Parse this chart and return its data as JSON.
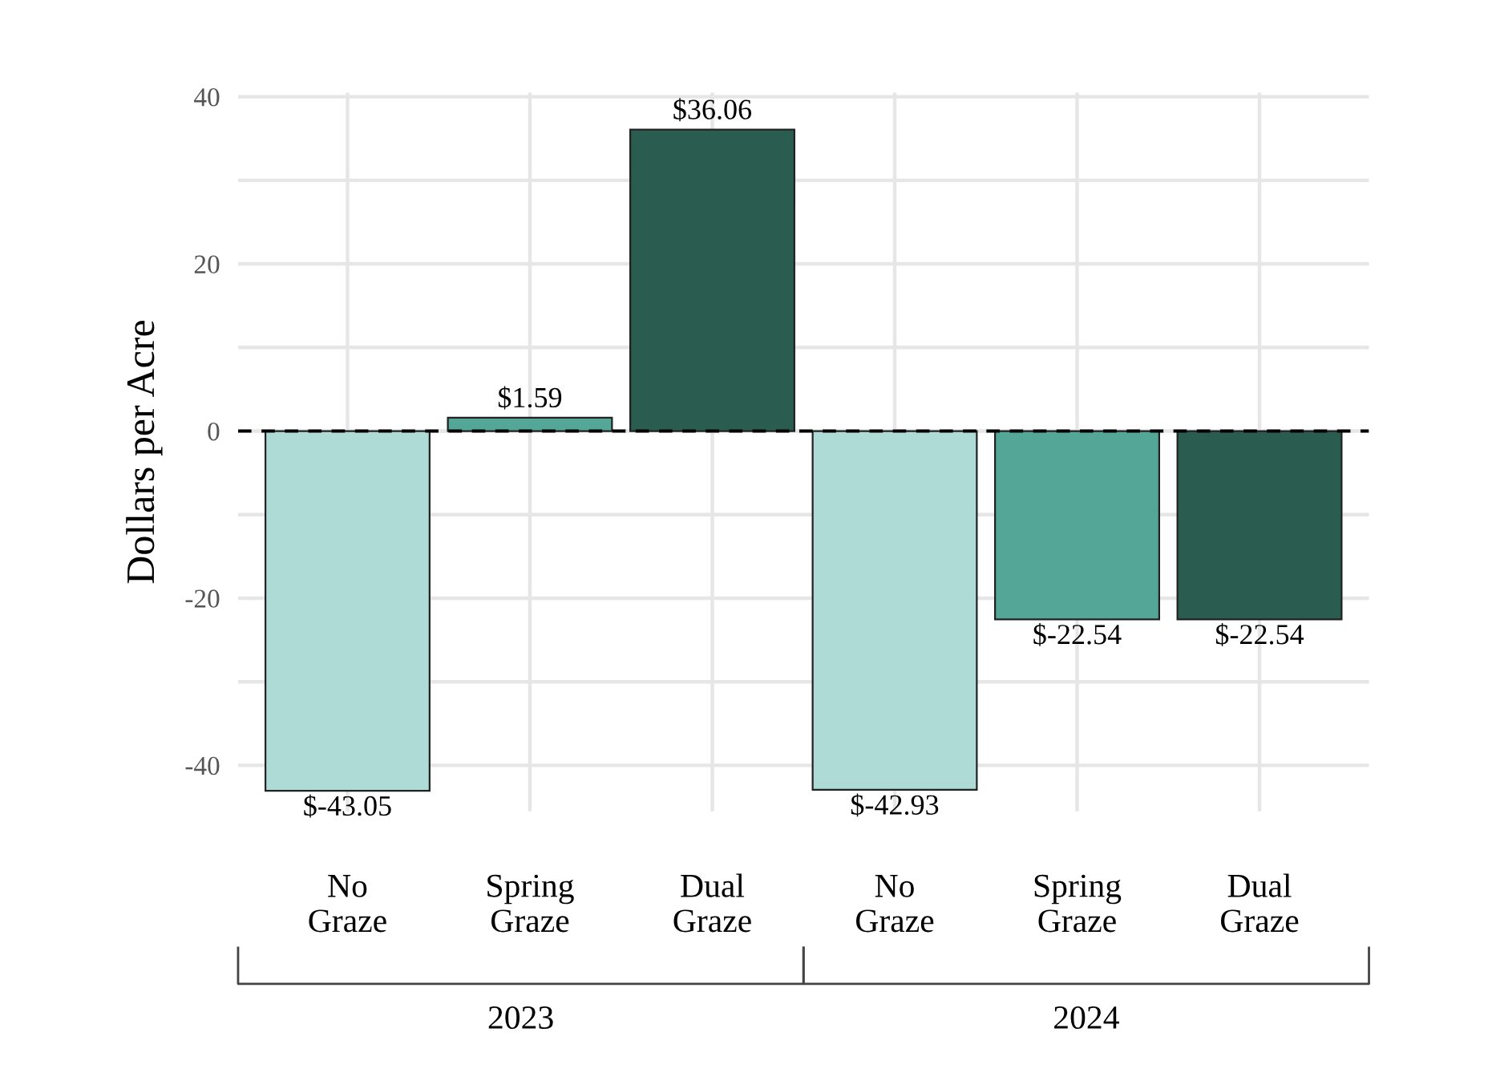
{
  "chart_data": {
    "type": "bar",
    "ylabel": "Dollars per Acre",
    "categories": [
      "No\nGraze",
      "Spring\nGraze",
      "Dual\nGraze",
      "No\nGraze",
      "Spring\nGraze",
      "Dual\nGraze"
    ],
    "values": [
      -43.05,
      1.59,
      36.06,
      -42.93,
      -22.54,
      -22.54
    ],
    "colors": [
      "#aedbd5",
      "#54a697",
      "#2a5c50",
      "#aedbd5",
      "#54a697",
      "#2a5c50"
    ],
    "value_labels": [
      "$-43.05",
      "$1.59",
      "$36.06",
      "$-42.93",
      "$-22.54",
      "$-22.54"
    ],
    "ylim": [
      -45.5,
      40.5
    ],
    "yticks": [
      -40,
      {
        "value": -30,
        "label": null
      },
      -20,
      {
        "value": -10,
        "label": null
      },
      0,
      {
        "value": 10,
        "label": null
      },
      20,
      {
        "value": 30,
        "label": null
      },
      40
    ],
    "ref_lines": [
      {
        "axis": "y",
        "value": 0,
        "color": "#000000",
        "line_style": "dashed"
      }
    ],
    "annotations": [
      "2023",
      "2024"
    ],
    "grid": true
  }
}
